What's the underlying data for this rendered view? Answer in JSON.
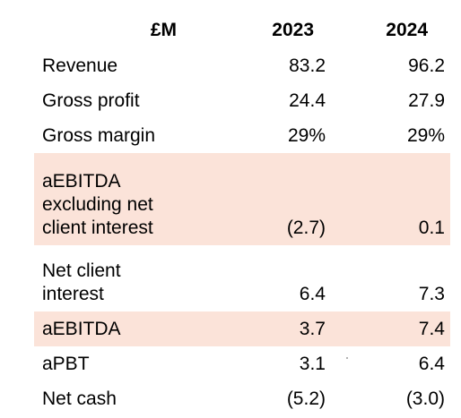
{
  "table": {
    "header": {
      "unit": "£M",
      "col_2023": "2023",
      "col_2024": "2024"
    },
    "rows": [
      {
        "label": "Revenue",
        "v2023": "83.2",
        "v2024": "96.2",
        "highlight": false
      },
      {
        "label": "Gross profit",
        "v2023": "24.4",
        "v2024": "27.9",
        "highlight": false
      },
      {
        "label": "Gross margin",
        "v2023": "29%",
        "v2024": "29%",
        "highlight": false
      },
      {
        "label_lines": [
          "aEBITDA",
          "excluding net",
          "client interest"
        ],
        "v2023": "(2.7)",
        "v2024": "0.1",
        "highlight": true
      },
      {
        "label_lines": [
          "Net client",
          "interest"
        ],
        "v2023": "6.4",
        "v2024": "7.3",
        "highlight": false
      },
      {
        "label": "aEBITDA",
        "v2023": "3.7",
        "v2024": "7.4",
        "highlight": true
      },
      {
        "label": "aPBT",
        "v2023": "3.1",
        "v2024": "6.4",
        "highlight": false
      },
      {
        "label": "Net cash",
        "v2023": "(5.2)",
        "v2024": "(3.0)",
        "highlight": false
      }
    ],
    "highlight_color": "#fbe3d9"
  }
}
